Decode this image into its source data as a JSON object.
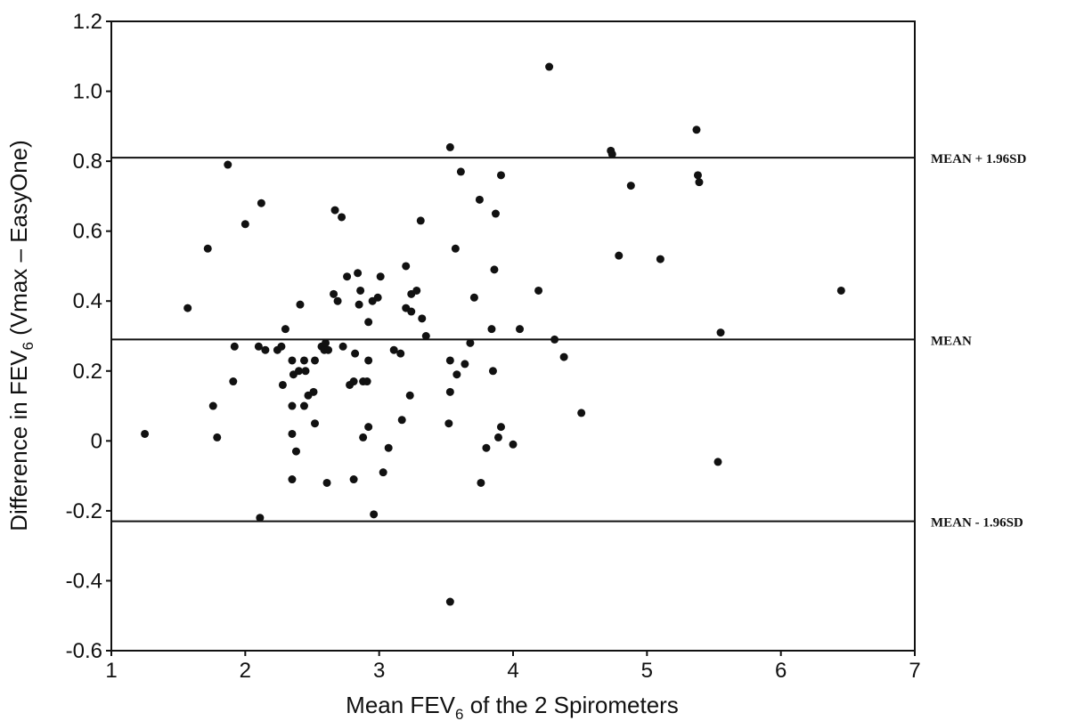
{
  "chart_data": {
    "type": "scatter",
    "title": "",
    "xlabel": {
      "main": "Mean FEV",
      "sub": "6",
      "rest": " of the 2 Spirometers"
    },
    "ylabel": {
      "main": "Difference in FEV",
      "sub": "6",
      "rest": " (Vmax – EasyOne)"
    },
    "xlim": [
      1,
      7
    ],
    "ylim": [
      -0.6,
      1.2
    ],
    "x_ticks": [
      1,
      2,
      3,
      4,
      5,
      6,
      7
    ],
    "x_tick_labels": [
      "1",
      "2",
      "3",
      "4",
      "5",
      "6",
      "7"
    ],
    "y_ticks": [
      1.2,
      1.0,
      0.8,
      0.6,
      0.4,
      0.2,
      0,
      -0.2,
      -0.4,
      -0.6
    ],
    "y_tick_labels": [
      "1.2",
      "1.0",
      "0.8",
      "0.6",
      "0.4",
      "0.2",
      "0",
      "-0.2",
      "-0.4",
      "-0.6"
    ],
    "grid": false,
    "reference_lines": [
      {
        "label": "MEAN + 1.96SD",
        "y": 0.81
      },
      {
        "label": "MEAN",
        "y": 0.29
      },
      {
        "label": "MEAN - 1.96SD",
        "y": -0.23
      }
    ],
    "points": [
      [
        1.25,
        0.02
      ],
      [
        1.57,
        0.38
      ],
      [
        1.72,
        0.55
      ],
      [
        1.76,
        0.1
      ],
      [
        1.79,
        0.01
      ],
      [
        1.87,
        0.79
      ],
      [
        1.91,
        0.17
      ],
      [
        1.92,
        0.27
      ],
      [
        2.0,
        0.62
      ],
      [
        2.1,
        0.27
      ],
      [
        2.12,
        0.68
      ],
      [
        2.11,
        -0.22
      ],
      [
        2.15,
        0.26
      ],
      [
        2.24,
        0.26
      ],
      [
        2.27,
        0.27
      ],
      [
        2.28,
        0.16
      ],
      [
        2.3,
        0.32
      ],
      [
        2.35,
        0.23
      ],
      [
        2.35,
        0.1
      ],
      [
        2.35,
        0.02
      ],
      [
        2.36,
        0.19
      ],
      [
        2.35,
        -0.11
      ],
      [
        2.38,
        -0.03
      ],
      [
        2.4,
        0.2
      ],
      [
        2.41,
        0.39
      ],
      [
        2.44,
        0.23
      ],
      [
        2.45,
        0.2
      ],
      [
        2.44,
        0.1
      ],
      [
        2.47,
        0.13
      ],
      [
        2.51,
        0.14
      ],
      [
        2.52,
        0.05
      ],
      [
        2.52,
        0.23
      ],
      [
        2.57,
        0.27
      ],
      [
        2.59,
        0.26
      ],
      [
        2.6,
        0.28
      ],
      [
        2.62,
        0.26
      ],
      [
        2.61,
        -0.12
      ],
      [
        2.66,
        0.42
      ],
      [
        2.67,
        0.66
      ],
      [
        2.69,
        0.4
      ],
      [
        2.72,
        0.64
      ],
      [
        2.73,
        0.27
      ],
      [
        2.76,
        0.47
      ],
      [
        2.78,
        0.16
      ],
      [
        2.81,
        0.17
      ],
      [
        2.81,
        -0.11
      ],
      [
        2.82,
        0.25
      ],
      [
        2.84,
        0.48
      ],
      [
        2.85,
        0.39
      ],
      [
        2.86,
        0.43
      ],
      [
        2.88,
        0.17
      ],
      [
        2.88,
        0.01
      ],
      [
        2.91,
        0.17
      ],
      [
        2.92,
        0.34
      ],
      [
        2.92,
        0.23
      ],
      [
        2.92,
        0.04
      ],
      [
        2.95,
        0.4
      ],
      [
        2.96,
        -0.21
      ],
      [
        2.99,
        0.41
      ],
      [
        3.01,
        0.47
      ],
      [
        3.03,
        -0.09
      ],
      [
        3.07,
        -0.02
      ],
      [
        3.11,
        0.26
      ],
      [
        3.16,
        0.25
      ],
      [
        3.17,
        0.06
      ],
      [
        3.2,
        0.5
      ],
      [
        3.2,
        0.38
      ],
      [
        3.23,
        0.13
      ],
      [
        3.24,
        0.37
      ],
      [
        3.24,
        0.42
      ],
      [
        3.28,
        0.43
      ],
      [
        3.31,
        0.63
      ],
      [
        3.32,
        0.35
      ],
      [
        3.35,
        0.3
      ],
      [
        3.53,
        0.84
      ],
      [
        3.53,
        0.23
      ],
      [
        3.53,
        0.14
      ],
      [
        3.52,
        0.05
      ],
      [
        3.53,
        -0.46
      ],
      [
        3.57,
        0.55
      ],
      [
        3.58,
        0.19
      ],
      [
        3.61,
        0.77
      ],
      [
        3.64,
        0.22
      ],
      [
        3.68,
        0.28
      ],
      [
        3.71,
        0.41
      ],
      [
        3.75,
        0.69
      ],
      [
        3.76,
        -0.12
      ],
      [
        3.8,
        -0.02
      ],
      [
        3.84,
        0.32
      ],
      [
        3.85,
        0.2
      ],
      [
        3.86,
        0.49
      ],
      [
        3.87,
        0.65
      ],
      [
        3.89,
        0.01
      ],
      [
        3.91,
        0.76
      ],
      [
        3.91,
        0.04
      ],
      [
        4.0,
        -0.01
      ],
      [
        4.05,
        0.32
      ],
      [
        4.19,
        0.43
      ],
      [
        4.27,
        1.07
      ],
      [
        4.31,
        0.29
      ],
      [
        4.38,
        0.24
      ],
      [
        4.51,
        0.08
      ],
      [
        4.73,
        0.83
      ],
      [
        4.74,
        0.82
      ],
      [
        4.79,
        0.53
      ],
      [
        4.88,
        0.73
      ],
      [
        5.1,
        0.52
      ],
      [
        5.37,
        0.89
      ],
      [
        5.38,
        0.76
      ],
      [
        5.39,
        0.74
      ],
      [
        5.53,
        -0.06
      ],
      [
        5.55,
        0.31
      ],
      [
        6.45,
        0.43
      ]
    ]
  }
}
